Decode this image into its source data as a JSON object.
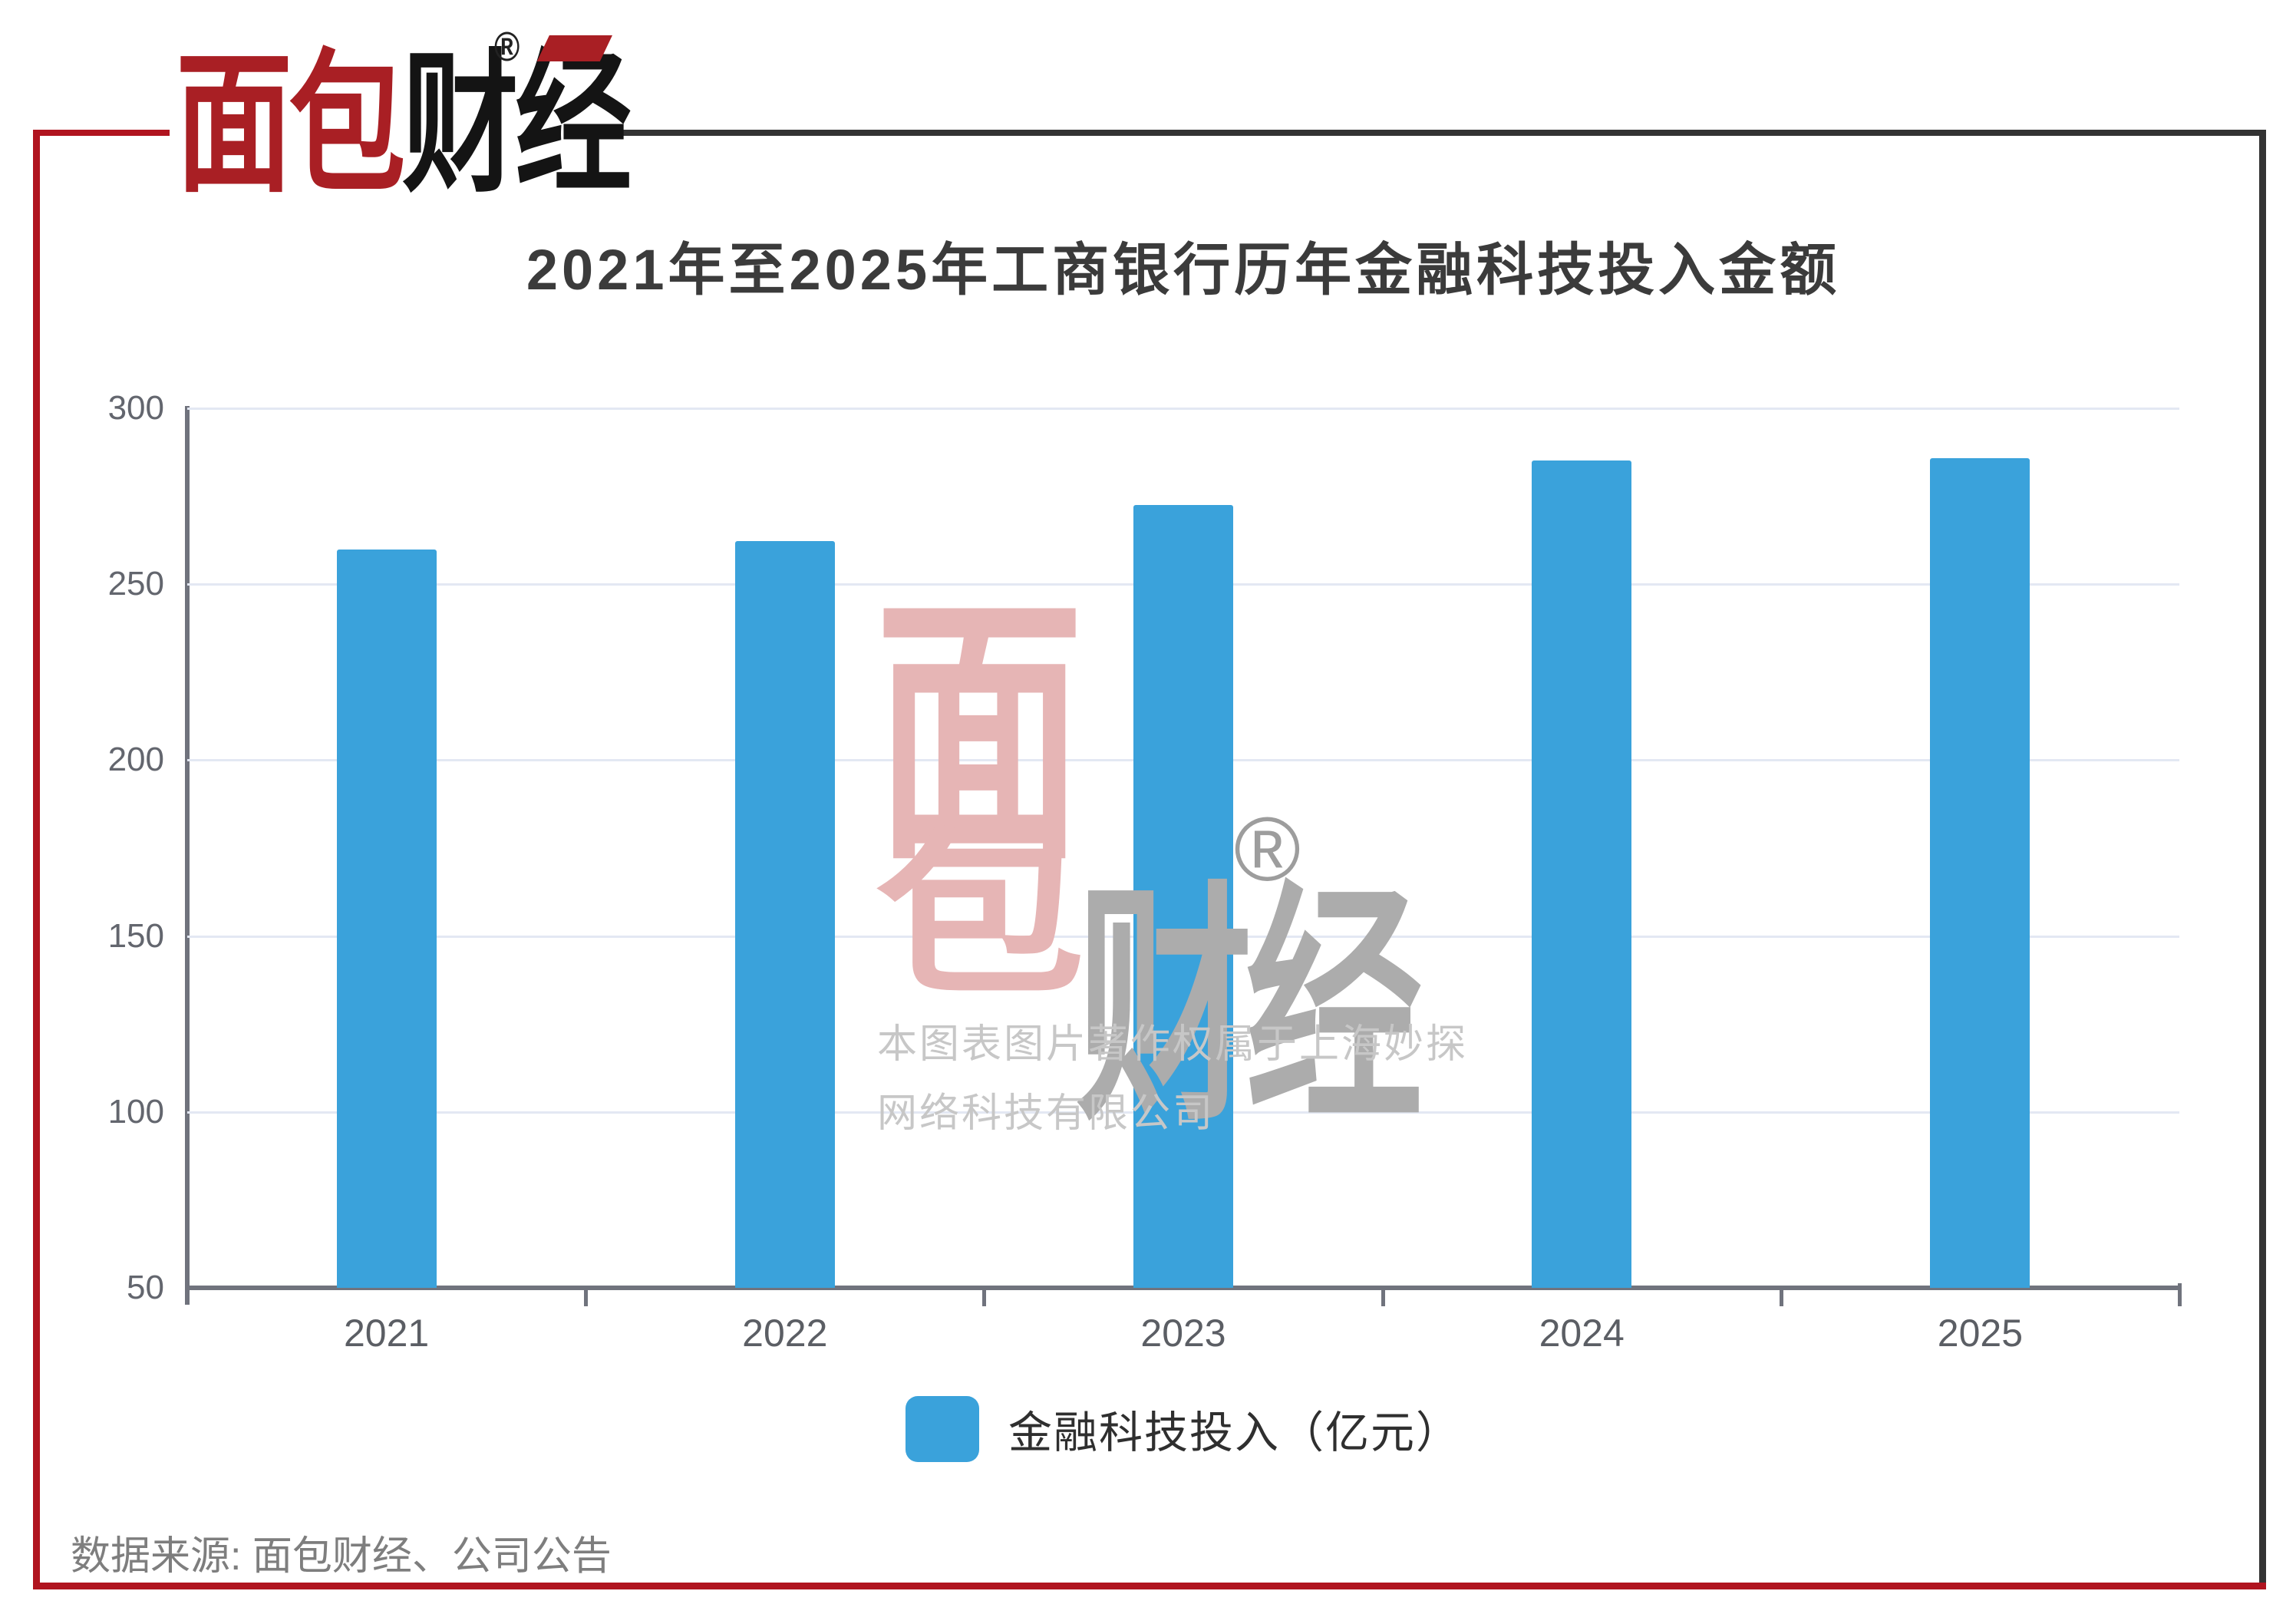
{
  "brand": {
    "logo_red": "面包",
    "logo_black": "财经",
    "registered": "®"
  },
  "chart_data": {
    "type": "bar",
    "title": "2021年至2025年工商银行历年金融科技投入金额",
    "categories": [
      "2021",
      "2022",
      "2023",
      "2024",
      "2025"
    ],
    "series": [
      {
        "name": "金融科技投入（亿元）",
        "values": [
          259.9,
          262.2,
          272.5,
          285.2,
          285.9
        ]
      }
    ],
    "xlabel": "",
    "ylabel": "",
    "ylim": [
      50,
      300
    ],
    "yticks": [
      50,
      100,
      150,
      200,
      250,
      300
    ],
    "grid": "horizontal",
    "legend_position": "bottom",
    "bar_color": "#3AA2DB"
  },
  "legend": {
    "swatch_color": "#3AA2DB"
  },
  "watermark": {
    "mian": "面",
    "bao": "包",
    "caijing": "财经",
    "registered": "®",
    "copyright_line1": "本图表图片著作权属于上海妙探",
    "copyright_line2": "网络科技有限公司"
  },
  "footer": {
    "source_text": "数据来源: 面包财经、公司公告"
  },
  "colors": {
    "frame_red": "#B0141F",
    "frame_dark": "#333333",
    "logo_red": "#A91F24",
    "bar_blue": "#3AA2DB",
    "gridline": "#E3E8F3",
    "axis_gray": "#70737D",
    "watermark_pink": "#E6B5B5",
    "watermark_gray": "#ACACAC"
  }
}
